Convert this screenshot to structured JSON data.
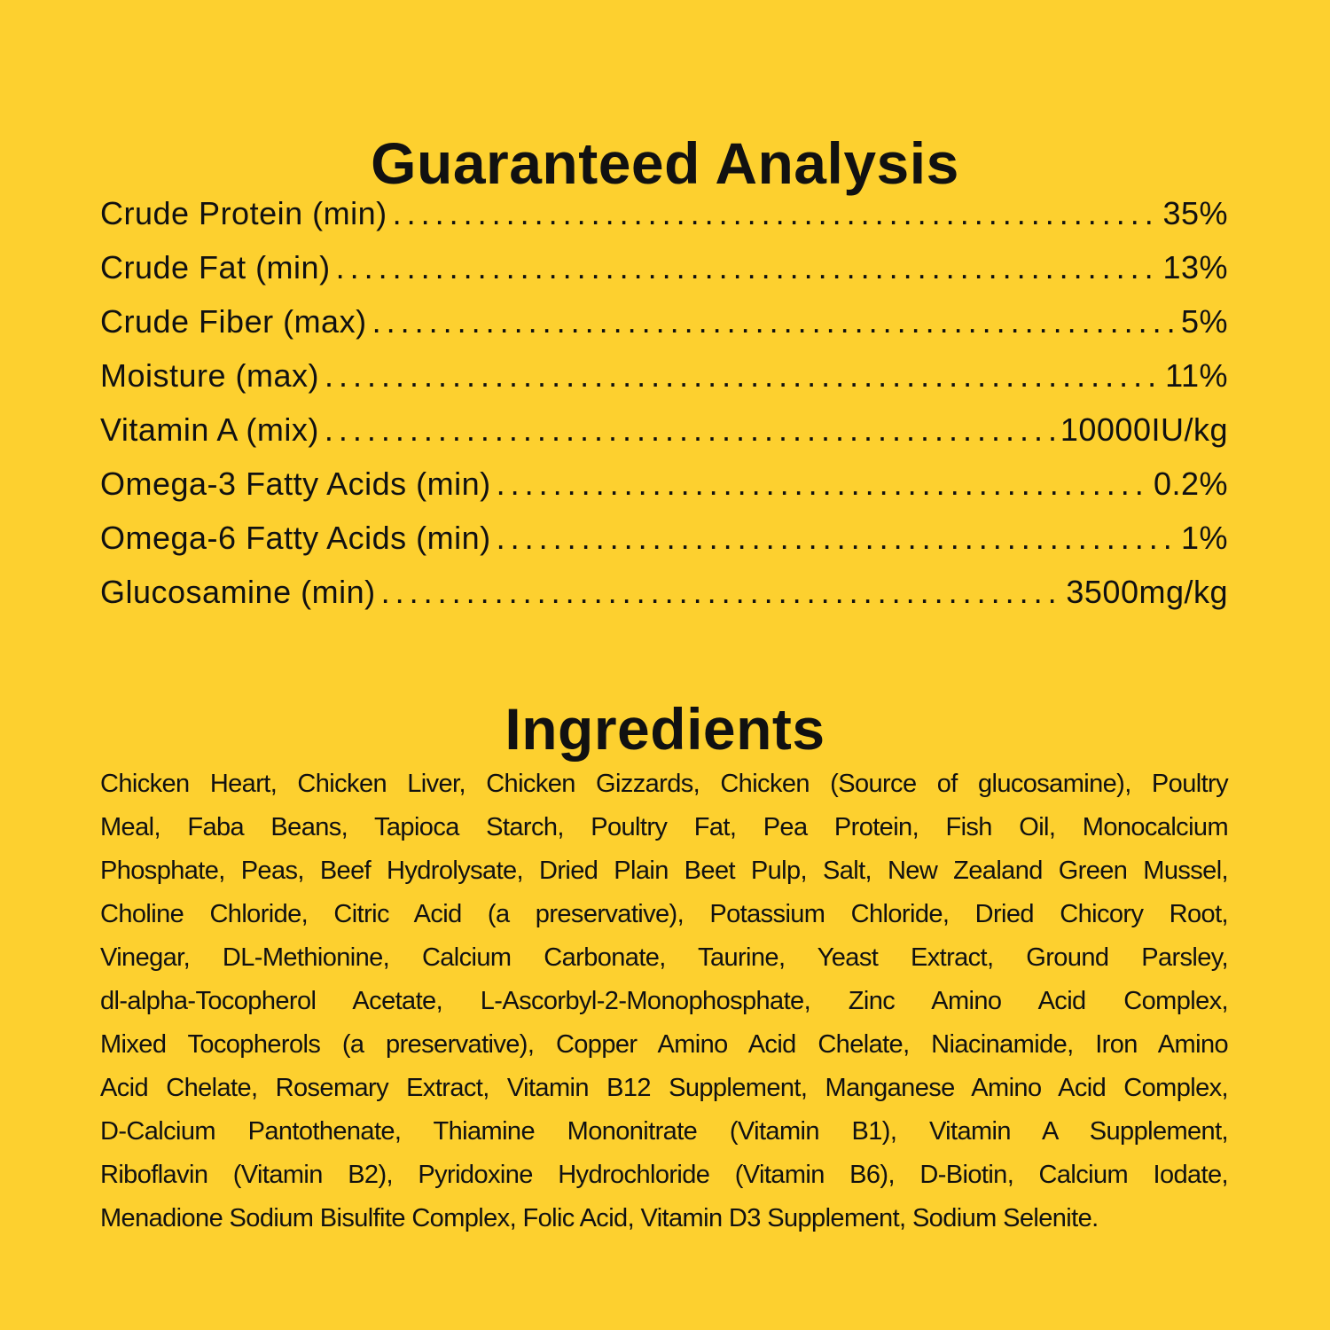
{
  "background_color": "#FDD02F",
  "analysis": {
    "title": "Guaranteed Analysis",
    "rows": [
      {
        "label": "Crude Protein (min)",
        "value": "35%"
      },
      {
        "label": "Crude Fat (min)",
        "value": "13%"
      },
      {
        "label": "Crude Fiber (max)",
        "value": "5%"
      },
      {
        "label": "Moisture (max)",
        "value": "11%"
      },
      {
        "label": "Vitamin A (mix)",
        "value": "10000IU/kg"
      },
      {
        "label": "Omega-3 Fatty Acids (min)",
        "value": "0.2%"
      },
      {
        "label": "Omega-6 Fatty Acids (min)",
        "value": "1%"
      },
      {
        "label": "Glucosamine (min)",
        "value": "3500mg/kg"
      }
    ]
  },
  "ingredients": {
    "title": "Ingredients",
    "lines": [
      "Chicken Heart, Chicken Liver, Chicken Gizzards, Chicken (Source of glucosamine), Poultry",
      "Meal, Faba Beans, Tapioca Starch, Poultry Fat, Pea Protein, Fish Oil, Monocalcium",
      "Phosphate, Peas, Beef Hydrolysate, Dried Plain Beet Pulp, Salt, New Zealand Green Mussel,",
      "Choline Chloride, Citric Acid (a preservative), Potassium Chloride, Dried Chicory Root,",
      "Vinegar, DL-Methionine, Calcium Carbonate, Taurine, Yeast Extract, Ground Parsley,",
      "dl-alpha-Tocopherol Acetate, L-Ascorbyl-2-Monophosphate, Zinc Amino Acid Complex,",
      "Mixed Tocopherols (a preservative), Copper Amino Acid Chelate, Niacinamide, Iron Amino",
      "Acid Chelate, Rosemary Extract, Vitamin B12 Supplement, Manganese Amino Acid Complex,",
      "D-Calcium Pantothenate, Thiamine Mononitrate (Vitamin B1), Vitamin A Supplement,",
      "Riboflavin (Vitamin B2), Pyridoxine Hydrochloride (Vitamin B6), D-Biotin, Calcium Iodate,",
      "Menadione Sodium Bisulfite Complex, Folic Acid, Vitamin D3 Supplement, Sodium Selenite."
    ]
  }
}
